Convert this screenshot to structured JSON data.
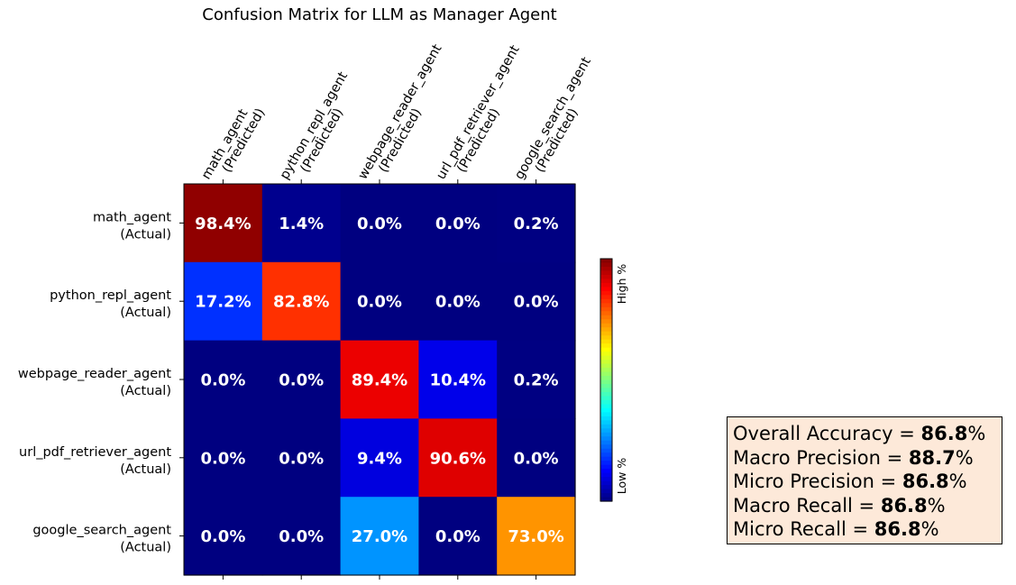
{
  "chart_data": {
    "type": "heatmap",
    "title": "Confusion Matrix for LLM as Manager Agent",
    "columns": [
      {
        "name": "math_agent",
        "suffix": "(Predicted)"
      },
      {
        "name": "python_repl_agent",
        "suffix": "(Predicted)"
      },
      {
        "name": "webpage_reader_agent",
        "suffix": "(Predicted)"
      },
      {
        "name": "url_pdf_retriever_agent",
        "suffix": "(Predicted)"
      },
      {
        "name": "google_search_agent",
        "suffix": "(Predicted)"
      }
    ],
    "rows": [
      {
        "name": "math_agent",
        "suffix": "(Actual)"
      },
      {
        "name": "python_repl_agent",
        "suffix": "(Actual)"
      },
      {
        "name": "webpage_reader_agent",
        "suffix": "(Actual)"
      },
      {
        "name": "url_pdf_retriever_agent",
        "suffix": "(Actual)"
      },
      {
        "name": "google_search_agent",
        "suffix": "(Actual)"
      }
    ],
    "values": [
      [
        98.4,
        1.4,
        0.0,
        0.0,
        0.2
      ],
      [
        17.2,
        82.8,
        0.0,
        0.0,
        0.0
      ],
      [
        0.0,
        0.0,
        89.4,
        10.4,
        0.2
      ],
      [
        0.0,
        0.0,
        9.4,
        90.6,
        0.0
      ],
      [
        0.0,
        0.0,
        27.0,
        0.0,
        73.0
      ]
    ],
    "value_suffix": "%",
    "colormap": "jet",
    "colorbar": {
      "high_label": "High %",
      "low_label": "Low %"
    },
    "value_range": [
      0,
      100
    ]
  },
  "stats": [
    {
      "label": "Overall Accuracy = ",
      "value": "86.8",
      "unit": "%"
    },
    {
      "label": "Macro Precision = ",
      "value": "88.7",
      "unit": "%"
    },
    {
      "label": "Micro Precision = ",
      "value": "86.8",
      "unit": "%"
    },
    {
      "label": "Macro Recall = ",
      "value": "86.8",
      "unit": "%"
    },
    {
      "label": "Micro Recall = ",
      "value": "86.8",
      "unit": "%"
    }
  ]
}
